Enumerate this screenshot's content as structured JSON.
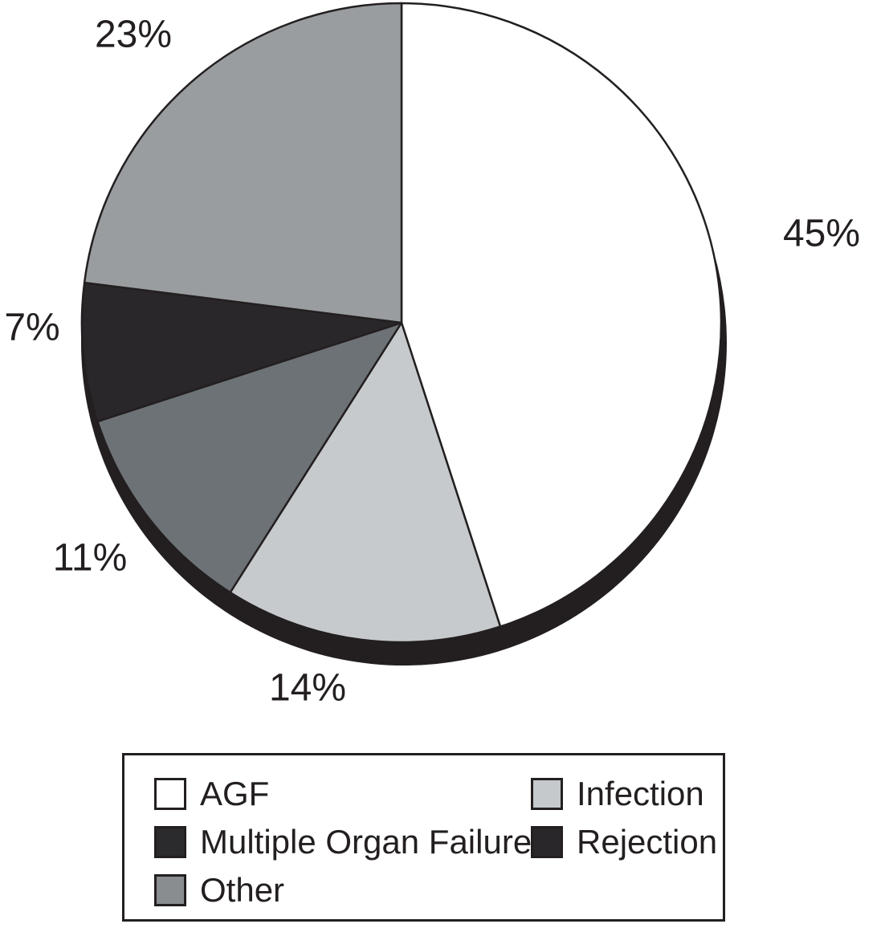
{
  "chart_data": {
    "type": "pie",
    "title": "",
    "direction": "clockwise",
    "start_angle_deg": 0,
    "background_color": "#ffffff",
    "outline_color": "#231f20",
    "shadow_color": "#231f20",
    "text_color": "#231f20",
    "legend_position": "bottom",
    "legend_border_color": "#231f20",
    "slices": [
      {
        "name": "AGF",
        "pct": 45,
        "label": "45%",
        "color": "#ffffff",
        "legend_swatch": "#ffffff"
      },
      {
        "name": "Infection",
        "pct": 14,
        "label": "14%",
        "color": "#c7cacc",
        "legend_swatch": "#c6c9cb"
      },
      {
        "name": "Multiple Organ Failure",
        "pct": 11,
        "label": "11%",
        "color": "#6d7276",
        "legend_swatch": "#2b2a2c"
      },
      {
        "name": "Rejection",
        "pct": 7,
        "label": "7%",
        "color": "#2a272a",
        "legend_swatch": "#2a272a"
      },
      {
        "name": "Other",
        "pct": 23,
        "label": "23%",
        "color": "#999da0",
        "legend_swatch": "#8a8d90"
      }
    ]
  }
}
